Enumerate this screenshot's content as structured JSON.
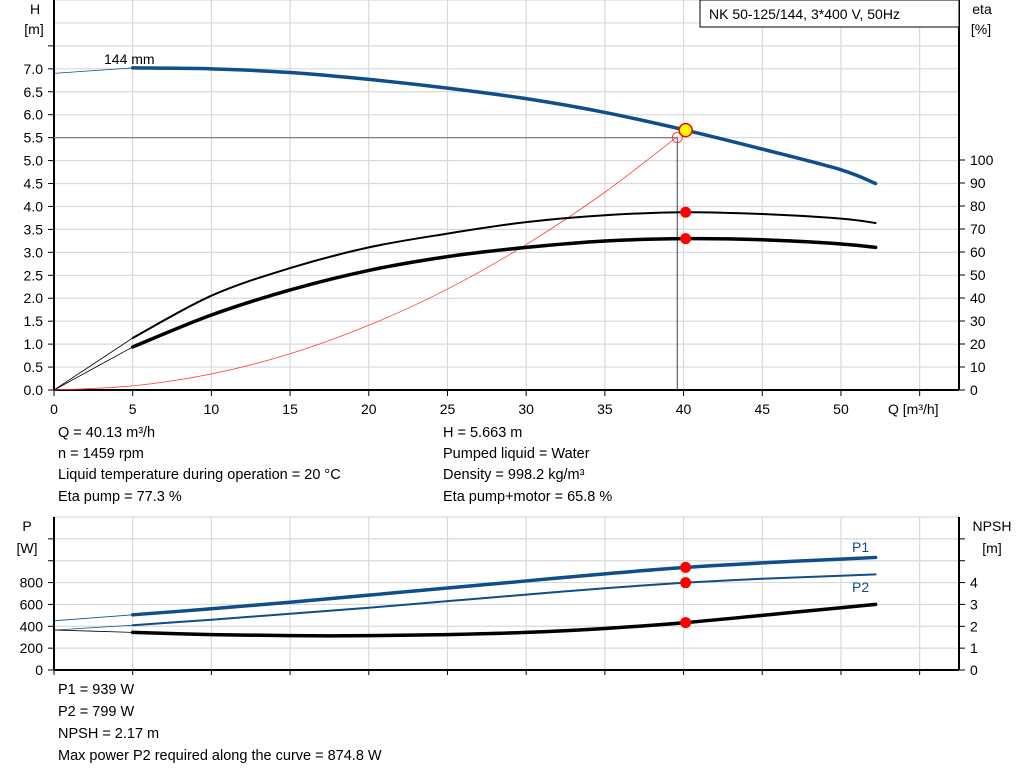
{
  "legend_box": "NK 50-125/144, 3*400 V, 50Hz",
  "colors": {
    "head": "#0e4e8a",
    "power": "#0e4e8a",
    "eta": "#000000",
    "npsh": "#000000",
    "duty_point": "#ff0000",
    "system_curve": "#ff4040",
    "op_point_fill": "#ffff00"
  },
  "chart_data": [
    {
      "type": "line",
      "title": "",
      "xlabel": "Q [m³/h]",
      "xlim": [
        0,
        57.5
      ],
      "x_ticks": [
        0,
        5,
        10,
        15,
        20,
        25,
        30,
        35,
        40,
        45,
        50
      ],
      "grid": true,
      "left_axis": {
        "label": "H",
        "unit": "[m]",
        "ylim": [
          0,
          8.5
        ],
        "tick_labels": [
          "0.0",
          "0.5",
          "1.0",
          "1.5",
          "2.0",
          "2.5",
          "3.0",
          "3.5",
          "4.0",
          "4.5",
          "5.0",
          "5.5",
          "6.0",
          "6.5",
          "7.0"
        ]
      },
      "right_axis": {
        "label": "eta",
        "unit": "[%]",
        "ylim": [
          0,
          100
        ],
        "tick_labels": [
          "0",
          "10",
          "20",
          "30",
          "40",
          "50",
          "60",
          "70",
          "80",
          "90",
          "100"
        ]
      },
      "curve_label": "144 mm",
      "series": [
        {
          "key": "head",
          "axis": "left",
          "points": [
            [
              0,
              6.9
            ],
            [
              5,
              7.02
            ],
            [
              10,
              7.0
            ],
            [
              15,
              6.92
            ],
            [
              20,
              6.77
            ],
            [
              25,
              6.58
            ],
            [
              30,
              6.35
            ],
            [
              35,
              6.05
            ],
            [
              40.13,
              5.663
            ],
            [
              45,
              5.25
            ],
            [
              50,
              4.8
            ],
            [
              52.2,
              4.5
            ]
          ]
        },
        {
          "key": "eta_pump",
          "axis": "right",
          "points": [
            [
              0,
              0
            ],
            [
              5,
              22.6
            ],
            [
              10,
              41
            ],
            [
              15,
              53
            ],
            [
              20,
              62
            ],
            [
              25,
              68
            ],
            [
              30,
              73
            ],
            [
              35,
              76
            ],
            [
              40.13,
              77.3
            ],
            [
              45,
              76.5
            ],
            [
              50,
              74.5
            ],
            [
              52.2,
              72.6
            ]
          ]
        },
        {
          "key": "eta_pump_motor",
          "axis": "right",
          "points": [
            [
              0,
              0
            ],
            [
              5,
              18.7
            ],
            [
              10,
              32.6
            ],
            [
              15,
              43.5
            ],
            [
              20,
              52
            ],
            [
              25,
              58
            ],
            [
              30,
              62
            ],
            [
              35,
              64.8
            ],
            [
              40.13,
              65.8
            ],
            [
              45,
              65.3
            ],
            [
              50,
              63.5
            ],
            [
              52.2,
              62
            ]
          ]
        },
        {
          "key": "system_curve",
          "axis": "left",
          "points": [
            [
              0,
              0
            ],
            [
              5,
              0.09
            ],
            [
              10,
              0.35
            ],
            [
              15,
              0.79
            ],
            [
              20,
              1.41
            ],
            [
              25,
              2.2
            ],
            [
              30,
              3.17
            ],
            [
              35,
              4.31
            ],
            [
              39.6,
              5.52
            ]
          ]
        }
      ],
      "duty_point": {
        "Q": 40.13,
        "H": 5.663,
        "eta_pump": 77.3,
        "eta_pump_motor": 65.8
      },
      "requested_point": {
        "Q": 39.6,
        "H": 5.5
      }
    },
    {
      "type": "line",
      "title": "",
      "xlim": [
        0,
        57.5
      ],
      "grid": true,
      "left_axis": {
        "label": "P",
        "unit": "[W]",
        "ylim": [
          0,
          1400
        ],
        "tick_labels": [
          "0",
          "200",
          "400",
          "600",
          "800"
        ]
      },
      "right_axis": {
        "label": "NPSH",
        "unit": "[m]",
        "ylim": [
          0,
          7
        ],
        "tick_labels": [
          "0",
          "1",
          "2",
          "3",
          "4"
        ]
      },
      "series": [
        {
          "name": "P1",
          "key": "p1",
          "axis": "left",
          "points": [
            [
              0,
              450
            ],
            [
              5,
              505
            ],
            [
              10,
              560
            ],
            [
              15,
              620
            ],
            [
              20,
              685
            ],
            [
              25,
              750
            ],
            [
              30,
              815
            ],
            [
              35,
              880
            ],
            [
              40.13,
              939
            ],
            [
              45,
              980
            ],
            [
              50,
              1015
            ],
            [
              52.2,
              1030
            ]
          ]
        },
        {
          "name": "P2",
          "key": "p2",
          "axis": "left",
          "points": [
            [
              0,
              365
            ],
            [
              5,
              410
            ],
            [
              10,
              460
            ],
            [
              15,
              515
            ],
            [
              20,
              570
            ],
            [
              25,
              630
            ],
            [
              30,
              690
            ],
            [
              35,
              748
            ],
            [
              40.13,
              799
            ],
            [
              45,
              835
            ],
            [
              50,
              862
            ],
            [
              52.2,
              874.8
            ]
          ]
        },
        {
          "key": "npsh",
          "axis": "right",
          "points": [
            [
              0,
              1.83
            ],
            [
              5,
              1.72
            ],
            [
              10,
              1.62
            ],
            [
              15,
              1.57
            ],
            [
              20,
              1.57
            ],
            [
              25,
              1.62
            ],
            [
              30,
              1.72
            ],
            [
              35,
              1.9
            ],
            [
              40.13,
              2.17
            ],
            [
              45,
              2.5
            ],
            [
              50,
              2.85
            ],
            [
              52.2,
              3.0
            ]
          ]
        }
      ],
      "duty_point": {
        "Q": 40.13,
        "P1": 939,
        "P2": 799,
        "NPSH": 2.17
      }
    }
  ],
  "info_top": {
    "q": "Q = 40.13 m³/h",
    "n": "n = 1459 rpm",
    "temp": "Liquid temperature during operation = 20 °C",
    "eta_pump": "Eta pump = 77.3 %",
    "h": "H = 5.663 m",
    "liquid": "Pumped liquid = Water",
    "density": "Density = 998.2 kg/m³",
    "eta_pm": "Eta pump+motor = 65.8 %"
  },
  "info_bottom": {
    "p1": "P1 = 939 W",
    "p2": "P2 = 799 W",
    "npsh": "NPSH = 2.17 m",
    "max_p2": "Max power P2 required along the curve = 874.8 W"
  }
}
